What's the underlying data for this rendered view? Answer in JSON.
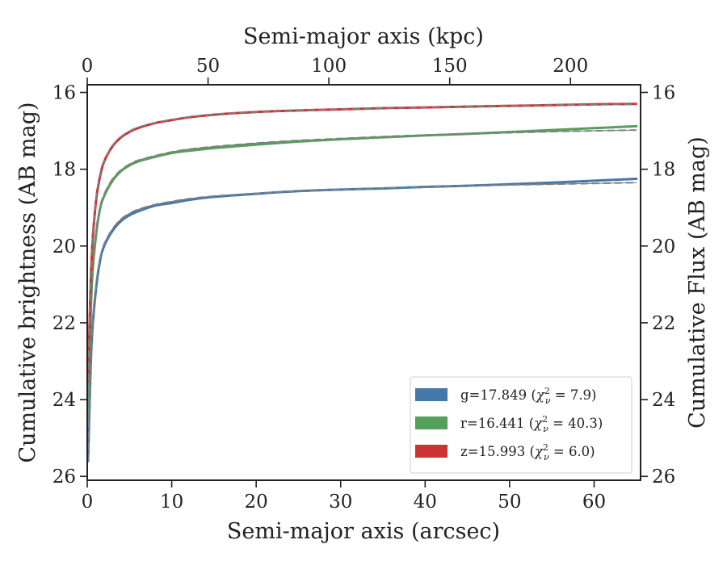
{
  "chart_data": {
    "type": "line",
    "xlabel": "Semi-major axis (arcsec)",
    "ylabel": "Cumulative brightness (AB mag)",
    "x2label": "Semi-major axis (kpc)",
    "y2label": "Cumulative Flux (AB mag)",
    "xlim": [
      0,
      65.5
    ],
    "ylim": [
      26.1,
      15.8
    ],
    "x2lim": [
      0,
      229
    ],
    "y_inverted": true,
    "xticks": [
      "0",
      "10",
      "20",
      "30",
      "40",
      "50",
      "60"
    ],
    "yticks": [
      "16",
      "18",
      "20",
      "22",
      "24",
      "26"
    ],
    "x2ticks": [
      "0",
      "50",
      "100",
      "150",
      "200"
    ],
    "y2ticks": [
      "16",
      "18",
      "20",
      "22",
      "24",
      "26"
    ],
    "legend_position": "bottom-right",
    "x": [
      0.1,
      0.5,
      1,
      1.5,
      2,
      3,
      4,
      5,
      6,
      8,
      10,
      12,
      15,
      20,
      25,
      30,
      35,
      40,
      45,
      50,
      55,
      60,
      65
    ],
    "series": [
      {
        "name": "g=17.849",
        "chi2": "7.9",
        "color": "#4477aa",
        "values": [
          25.6,
          22.6,
          21.2,
          20.4,
          20.0,
          19.6,
          19.35,
          19.2,
          19.1,
          18.95,
          18.88,
          18.8,
          18.72,
          18.64,
          18.57,
          18.53,
          18.5,
          18.46,
          18.43,
          18.39,
          18.35,
          18.3,
          18.25
        ],
        "model": [
          25.6,
          22.5,
          21.1,
          20.35,
          19.95,
          19.55,
          19.3,
          19.15,
          19.05,
          18.92,
          18.84,
          18.77,
          18.7,
          18.63,
          18.57,
          18.53,
          18.49,
          18.46,
          18.43,
          18.41,
          18.39,
          18.37,
          18.35
        ]
      },
      {
        "name": "r=16.441",
        "chi2": "40.3",
        "color": "#55a05a",
        "values": [
          24.5,
          21.2,
          19.8,
          19.05,
          18.7,
          18.3,
          18.05,
          17.9,
          17.8,
          17.68,
          17.58,
          17.52,
          17.45,
          17.36,
          17.28,
          17.22,
          17.17,
          17.12,
          17.08,
          17.03,
          16.98,
          16.93,
          16.88
        ],
        "model": [
          24.5,
          21.1,
          19.7,
          19.0,
          18.65,
          18.25,
          18.02,
          17.87,
          17.77,
          17.65,
          17.55,
          17.48,
          17.41,
          17.32,
          17.25,
          17.2,
          17.15,
          17.11,
          17.08,
          17.05,
          17.02,
          17.0,
          16.98
        ]
      },
      {
        "name": "z=15.993",
        "chi2": "6.0",
        "color": "#cc3333",
        "values": [
          23.5,
          20.4,
          18.9,
          18.2,
          17.8,
          17.4,
          17.17,
          17.03,
          16.93,
          16.8,
          16.72,
          16.65,
          16.58,
          16.51,
          16.47,
          16.44,
          16.41,
          16.39,
          16.37,
          16.35,
          16.33,
          16.31,
          16.3
        ],
        "model": [
          23.5,
          20.3,
          18.85,
          18.15,
          17.78,
          17.38,
          17.15,
          17.01,
          16.91,
          16.79,
          16.71,
          16.64,
          16.57,
          16.51,
          16.47,
          16.44,
          16.41,
          16.39,
          16.37,
          16.35,
          16.33,
          16.32,
          16.31
        ]
      }
    ]
  }
}
